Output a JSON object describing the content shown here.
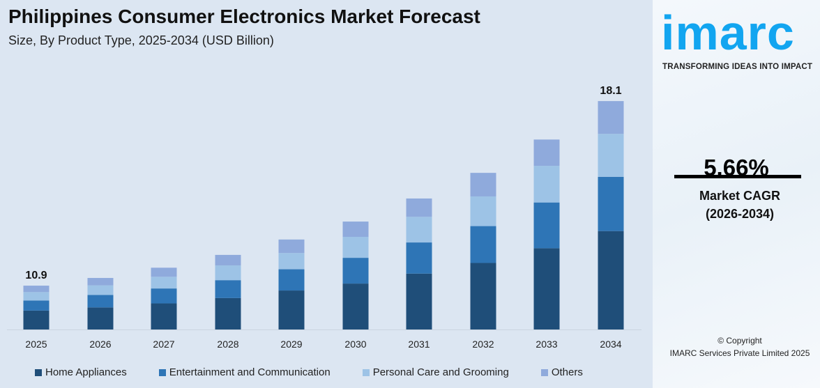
{
  "header": {
    "title": "Philippines Consumer Electronics Market Forecast",
    "subtitle": "Size, By Product Type, 2025-2034 (USD Billion)"
  },
  "chart_data": {
    "type": "bar",
    "stacked": true,
    "categories": [
      "2025",
      "2026",
      "2027",
      "2028",
      "2029",
      "2030",
      "2031",
      "2032",
      "2033",
      "2034"
    ],
    "series": [
      {
        "name": "Home Appliances",
        "color": "#1f4e79",
        "values": [
          4.7,
          4.8,
          4.9,
          5.1,
          5.5,
          5.7,
          6.1,
          6.5,
          7.1,
          7.8
        ]
      },
      {
        "name": "Entertainment and Communication",
        "color": "#2e75b6",
        "values": [
          2.5,
          2.7,
          2.8,
          2.9,
          3.0,
          3.2,
          3.4,
          3.6,
          4.0,
          4.3
        ]
      },
      {
        "name": "Personal Care and Grooming",
        "color": "#9dc3e6",
        "values": [
          2.1,
          2.1,
          2.2,
          2.4,
          2.3,
          2.6,
          2.8,
          2.9,
          3.2,
          3.4
        ]
      },
      {
        "name": "Others",
        "color": "#8faadc",
        "values": [
          1.6,
          1.6,
          1.7,
          1.7,
          1.9,
          1.9,
          2.0,
          2.3,
          2.3,
          2.6
        ]
      }
    ],
    "data_labels": {
      "2025": "10.9",
      "2034": "18.1"
    },
    "grid": false,
    "legend": "bottom"
  },
  "panel": {
    "logo": "imarc",
    "tagline": "TRANSFORMING IDEAS INTO IMPACT",
    "cagr_value": "5.66%",
    "cagr_label": "Market CAGR",
    "cagr_period": "(2026-2034)",
    "copyright": "© Copyright",
    "company": "IMARC Services Private Limited 2025"
  }
}
